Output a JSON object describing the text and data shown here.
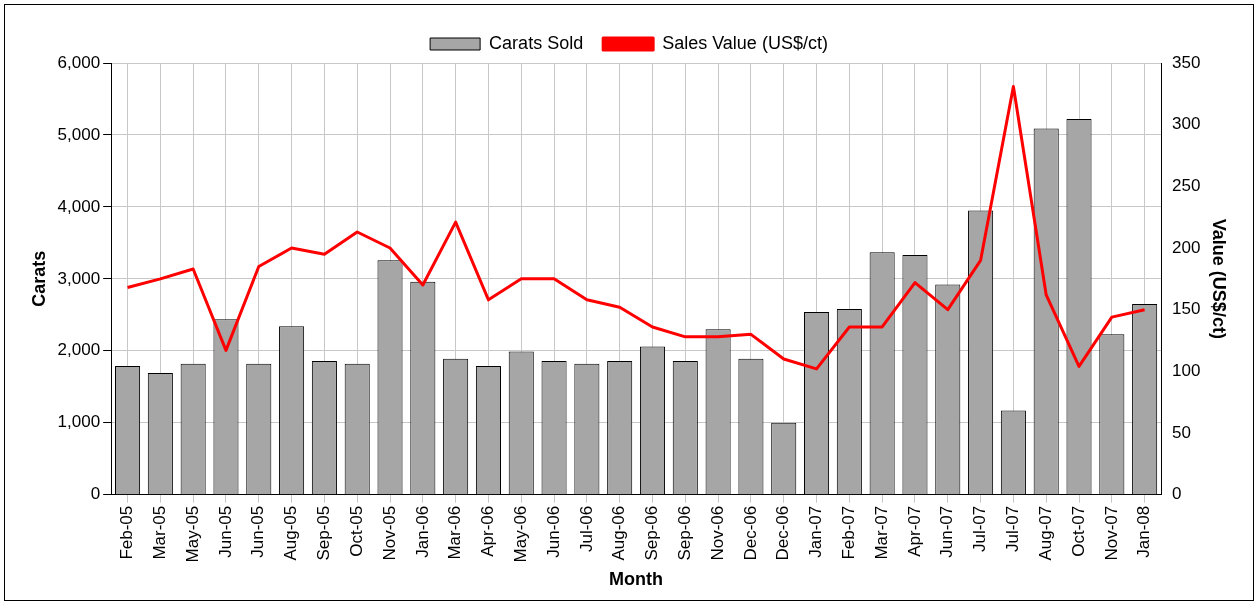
{
  "chart_data": {
    "type": "bar",
    "xlabel": "Month",
    "ylabel": "Carats",
    "y2label": "Value (US$/ct)",
    "categories": [
      "Feb-05",
      "Mar-05",
      "May-05",
      "Jun-05",
      "Jun-05",
      "Aug-05",
      "Sep-05",
      "Oct-05",
      "Nov-05",
      "Jan-06",
      "Mar-06",
      "Apr-06",
      "May-06",
      "Jun-06",
      "Jul-06",
      "Aug-06",
      "Sep-06",
      "Sep-06",
      "Nov-06",
      "Dec-06",
      "Dec-06",
      "Jan-07",
      "Feb-07",
      "Mar-07",
      "Apr-07",
      "Jun-07",
      "Jul-07",
      "Jul-07",
      "Aug-07",
      "Oct-07",
      "Nov-07",
      "Jan-08"
    ],
    "series": [
      {
        "name": "Carats Sold",
        "color": "#a6a6a6",
        "values": [
          1790,
          1690,
          1820,
          2440,
          1820,
          2340,
          1860,
          1820,
          3260,
          2960,
          1890,
          1790,
          1990,
          1860,
          1820,
          1860,
          2060,
          1860,
          2300,
          1890,
          1000,
          2540,
          2580,
          3370,
          3330,
          2920,
          3950,
          1170,
          5090,
          5220,
          2230,
          2650
        ]
      },
      {
        "name": "Sales Value (US$/ct)",
        "type": "line",
        "axis": "y2",
        "color": "#ff0000",
        "values": [
          168,
          175,
          183,
          117,
          185,
          200,
          195,
          213,
          200,
          170,
          221,
          158,
          175,
          175,
          158,
          152,
          136,
          128,
          128,
          130,
          110,
          102,
          136,
          136,
          172,
          150,
          190,
          331,
          162,
          104,
          144,
          150
        ]
      }
    ],
    "ylim": [
      0,
      6000
    ],
    "yticks": [
      {
        "value": 0,
        "label": "0"
      },
      {
        "value": 1000,
        "label": "1,000"
      },
      {
        "value": 2000,
        "label": "2,000"
      },
      {
        "value": 3000,
        "label": "3,000"
      },
      {
        "value": 4000,
        "label": "4,000"
      },
      {
        "value": 5000,
        "label": "5,000"
      },
      {
        "value": 6000,
        "label": "6,000"
      }
    ],
    "y2lim": [
      0,
      350
    ],
    "y2ticks": [
      0,
      50,
      100,
      150,
      200,
      250,
      300,
      350
    ],
    "grid": true,
    "legend": "top",
    "marker": "none",
    "line_style": "solid"
  }
}
